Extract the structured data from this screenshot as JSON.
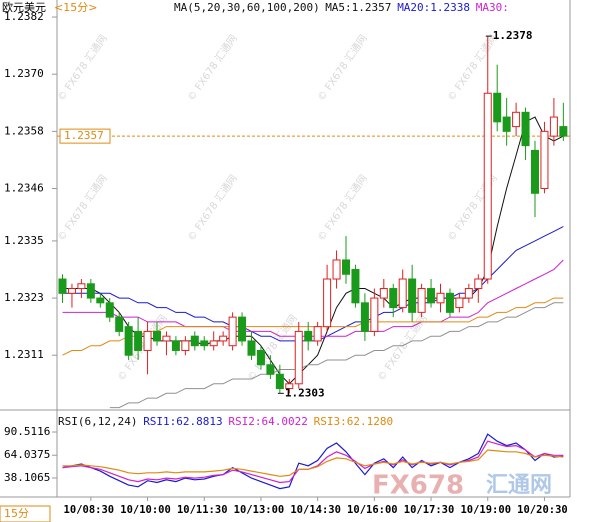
{
  "chart_data": [
    {
      "type": "candlestick",
      "title": "欧元美元",
      "subtitle": "<15分>",
      "ylim": [
        1.22995,
        1.23839
      ],
      "yticks": [
        1.2382,
        {
          "value": 1.237,
          "label": "1.2370"
        },
        1.2358,
        1.2346,
        1.2335,
        1.2323,
        1.2311
      ],
      "up_color": "#e02020",
      "down_color": "#1a9a1a",
      "open": [
        1.2327,
        1.2324,
        1.2325,
        1.2326,
        1.2323,
        1.2322,
        1.2319,
        1.2317,
        1.2316,
        1.2312,
        1.2316,
        1.2314,
        1.2314,
        1.2312,
        1.2315,
        1.2314,
        1.2313,
        1.2314,
        1.2313,
        1.2319,
        1.2314,
        1.2312,
        1.2309,
        1.2307,
        1.2304,
        1.2305,
        1.2316,
        1.2314,
        1.2317,
        1.2327,
        1.2331,
        1.2329,
        1.2322,
        1.2316,
        1.2323,
        1.2325,
        1.2321,
        1.2327,
        1.232,
        1.2325,
        1.2322,
        1.2324,
        1.2321,
        1.2323,
        1.2325,
        1.2327,
        1.2366,
        1.2361,
        1.2359,
        1.2362,
        1.2354,
        1.2346,
        1.2357,
        1.2359
      ],
      "high": [
        1.2328,
        1.2326,
        1.2327,
        1.2327,
        1.2324,
        1.2323,
        1.232,
        1.2318,
        1.2319,
        1.2318,
        1.2318,
        1.2316,
        1.2315,
        1.2315,
        1.2316,
        1.2315,
        1.2316,
        1.2316,
        1.232,
        1.232,
        1.2316,
        1.2313,
        1.2311,
        1.2309,
        1.2306,
        1.2318,
        1.2318,
        1.2318,
        1.233,
        1.2333,
        1.2336,
        1.233,
        1.2324,
        1.2325,
        1.2327,
        1.2326,
        1.2329,
        1.233,
        1.2326,
        1.2327,
        1.2326,
        1.2325,
        1.2324,
        1.2326,
        1.2328,
        1.2378,
        1.2372,
        1.2365,
        1.2364,
        1.2363,
        1.2356,
        1.236,
        1.2365,
        1.2364
      ],
      "low": [
        1.2322,
        1.2321,
        1.2323,
        1.2322,
        1.2321,
        1.2318,
        1.2315,
        1.231,
        1.231,
        1.2307,
        1.2313,
        1.2311,
        1.2311,
        1.2311,
        1.2312,
        1.2312,
        1.2312,
        1.2313,
        1.2312,
        1.2313,
        1.231,
        1.2308,
        1.2306,
        1.2303,
        1.2303,
        1.2304,
        1.2312,
        1.2313,
        1.2316,
        1.2325,
        1.2326,
        1.2321,
        1.2314,
        1.2315,
        1.2321,
        1.2319,
        1.232,
        1.2318,
        1.2319,
        1.2321,
        1.232,
        1.2319,
        1.232,
        1.2322,
        1.2322,
        1.2326,
        1.2358,
        1.2355,
        1.2357,
        1.2352,
        1.234,
        1.2345,
        1.2355,
        1.2356
      ],
      "close": [
        1.2324,
        1.2325,
        1.2326,
        1.2323,
        1.2322,
        1.2319,
        1.2316,
        1.2311,
        1.2312,
        1.2316,
        1.2314,
        1.2315,
        1.2312,
        1.2314,
        1.2313,
        1.2313,
        1.2314,
        1.2315,
        1.2319,
        1.2314,
        1.2311,
        1.2309,
        1.2307,
        1.2304,
        1.2305,
        1.2316,
        1.2314,
        1.2317,
        1.2327,
        1.2331,
        1.2328,
        1.2322,
        1.2316,
        1.2323,
        1.2325,
        1.2321,
        1.2327,
        1.232,
        1.2325,
        1.2322,
        1.2324,
        1.232,
        1.2323,
        1.2325,
        1.2327,
        1.2366,
        1.236,
        1.2358,
        1.2362,
        1.2355,
        1.2345,
        1.2358,
        1.2361,
        1.2357
      ],
      "lines": [
        {
          "color": "#111111",
          "values": [
            1.2325,
            1.2325,
            1.2325,
            1.2325,
            1.2324,
            1.2322,
            1.232,
            1.2317,
            1.2315,
            1.2315,
            1.2314,
            1.2314,
            1.2314,
            1.2314,
            1.2314,
            1.2313,
            1.2314,
            1.2314,
            1.2315,
            1.2315,
            1.2315,
            1.2313,
            1.231,
            1.2307,
            1.2305,
            1.2307,
            1.2309,
            1.2311,
            1.2316,
            1.2321,
            1.2324,
            1.2325,
            1.2325,
            1.2324,
            1.2323,
            1.2321,
            1.2322,
            1.2323,
            1.2323,
            1.2323,
            1.2323,
            1.2323,
            1.2323,
            1.2323,
            1.2325,
            1.2329,
            1.2338,
            1.2346,
            1.2353,
            1.236,
            1.2361,
            1.2357,
            1.2356,
            1.2357
          ]
        },
        {
          "color": "#1a1ad0",
          "values": [
            1.2324,
            1.2324,
            1.2324,
            1.2324,
            1.2324,
            1.2324,
            1.2323,
            1.2323,
            1.2322,
            1.2322,
            1.2321,
            1.2321,
            1.232,
            1.232,
            1.2319,
            1.2319,
            1.2318,
            1.2318,
            1.2317,
            1.2317,
            1.2316,
            1.2315,
            1.2315,
            1.2314,
            1.2314,
            1.2314,
            1.2314,
            1.2314,
            1.2315,
            1.2316,
            1.2317,
            1.2318,
            1.2318,
            1.2319,
            1.232,
            1.232,
            1.2321,
            1.2322,
            1.2322,
            1.2322,
            1.2323,
            1.2323,
            1.2324,
            1.2324,
            1.2325,
            1.2327,
            1.2329,
            1.2331,
            1.2333,
            1.2334,
            1.2335,
            1.2336,
            1.2337,
            1.2338
          ]
        },
        {
          "color": "#d020d0",
          "values": [
            1.232,
            1.232,
            1.232,
            1.232,
            1.232,
            1.232,
            1.2319,
            1.2319,
            1.2319,
            1.2318,
            1.2318,
            1.2318,
            1.2318,
            1.2317,
            1.2317,
            1.2317,
            1.2317,
            1.2317,
            1.2316,
            1.2316,
            1.2316,
            1.2316,
            1.2316,
            1.2315,
            1.2315,
            1.2315,
            1.2315,
            1.2315,
            1.2315,
            1.2315,
            1.2315,
            1.2316,
            1.2316,
            1.2316,
            1.2316,
            1.2317,
            1.2317,
            1.2317,
            1.2318,
            1.2318,
            1.2318,
            1.2319,
            1.2319,
            1.2319,
            1.232,
            1.2322,
            1.2323,
            1.2324,
            1.2325,
            1.2326,
            1.2327,
            1.2328,
            1.2329,
            1.2331
          ]
        },
        {
          "color": "#e08a10",
          "values": [
            1.2311,
            1.2312,
            1.2312,
            1.2313,
            1.2313,
            1.2314,
            1.2314,
            1.2315,
            1.2315,
            1.2316,
            1.2316,
            1.2317,
            1.2317,
            1.2317,
            1.2317,
            1.2317,
            1.2317,
            1.2317,
            1.2317,
            1.2317,
            1.2317,
            1.2317,
            1.2317,
            1.2317,
            1.2317,
            1.2317,
            1.2317,
            1.2317,
            1.2317,
            1.2317,
            1.2317,
            1.2317,
            1.2318,
            1.2318,
            1.2318,
            1.2318,
            1.2318,
            1.2318,
            1.2318,
            1.2318,
            1.2318,
            1.2318,
            1.2318,
            1.2318,
            1.2319,
            1.2319,
            1.232,
            1.232,
            1.2321,
            1.2321,
            1.2322,
            1.2322,
            1.2323,
            1.2323
          ]
        },
        {
          "color": "#909090",
          "values": [
            null,
            null,
            null,
            null,
            null,
            1.23,
            1.23,
            1.2301,
            1.2301,
            1.2302,
            1.2302,
            1.2303,
            1.2303,
            1.2304,
            1.2304,
            1.2304,
            1.2305,
            1.2305,
            1.2306,
            1.2306,
            1.2306,
            1.2307,
            1.2307,
            1.2308,
            1.2308,
            1.2308,
            1.2309,
            1.2309,
            1.231,
            1.231,
            1.231,
            1.2311,
            1.2311,
            1.2312,
            1.2312,
            1.2313,
            1.2313,
            1.2314,
            1.2314,
            1.2315,
            1.2315,
            1.2316,
            1.2316,
            1.2317,
            1.2317,
            1.2318,
            1.2318,
            1.2319,
            1.2319,
            1.232,
            1.2321,
            1.2321,
            1.2322,
            1.2322
          ]
        }
      ],
      "legend": [
        {
          "text": "MA(5,20,30,60,100,200)",
          "color": "#111111"
        },
        {
          "text": "MA5:1.2357",
          "color": "#111111"
        },
        {
          "text": "MA20:1.2338",
          "color": "#1a1ad0"
        },
        {
          "text": "MA30:",
          "color": "#d020d0"
        }
      ],
      "last_price": 1.2357,
      "last_price_color": "#e08a10",
      "annotations": [
        {
          "text": "1.2378",
          "value": 1.2378,
          "of": "high"
        },
        {
          "text": "1.2303",
          "value": 1.2303,
          "of": "low"
        }
      ]
    },
    {
      "type": "line",
      "categories": [
        null,
        null,
        null,
        "10/08:30",
        null,
        null,
        null,
        null,
        null,
        "10/10:00",
        null,
        null,
        null,
        null,
        null,
        "10/11:30",
        null,
        null,
        null,
        null,
        null,
        "10/13:00",
        null,
        null,
        null,
        null,
        null,
        "10/14:30",
        null,
        null,
        null,
        null,
        null,
        "10/16:00",
        null,
        null,
        null,
        null,
        null,
        "10/17:30",
        null,
        null,
        null,
        null,
        null,
        "10/19:00",
        null,
        null,
        null,
        null,
        null,
        "10/20:30",
        null,
        null
      ],
      "ylim": [
        18.7,
        106.5
      ],
      "yticks": [
        90.5116,
        64.0375,
        38.1065
      ],
      "series": [
        {
          "color": "#1a1ad0",
          "values": [
            50,
            52,
            54,
            50,
            46,
            40,
            35,
            30,
            28,
            35,
            33,
            36,
            34,
            38,
            36,
            37,
            40,
            42,
            50,
            44,
            38,
            34,
            30,
            26,
            28,
            55,
            52,
            58,
            72,
            78,
            68,
            55,
            42,
            55,
            60,
            50,
            62,
            50,
            58,
            52,
            56,
            50,
            56,
            60,
            66,
            88,
            80,
            75,
            78,
            70,
            58,
            66,
            62,
            63
          ]
        },
        {
          "color": "#d020d0",
          "values": [
            50,
            51,
            52,
            50,
            48,
            44,
            40,
            36,
            34,
            37,
            36,
            38,
            37,
            39,
            38,
            39,
            41,
            42,
            47,
            45,
            42,
            39,
            36,
            33,
            34,
            48,
            48,
            52,
            62,
            68,
            64,
            57,
            49,
            54,
            57,
            53,
            59,
            53,
            57,
            54,
            56,
            53,
            56,
            58,
            62,
            80,
            77,
            74,
            75,
            70,
            62,
            66,
            64,
            64
          ]
        },
        {
          "color": "#e08a10",
          "values": [
            52,
            52,
            53,
            52,
            51,
            49,
            47,
            44,
            43,
            44,
            44,
            45,
            44,
            45,
            45,
            45,
            46,
            47,
            49,
            48,
            46,
            44,
            42,
            40,
            41,
            48,
            48,
            51,
            57,
            61,
            60,
            56,
            52,
            54,
            56,
            54,
            57,
            54,
            56,
            55,
            56,
            54,
            56,
            57,
            59,
            70,
            69,
            68,
            68,
            66,
            62,
            64,
            63,
            62
          ]
        }
      ],
      "legend": [
        {
          "text": "RSI(6,12,24)",
          "color": "#111111"
        },
        {
          "text": "RSI1:62.8813",
          "color": "#1a1ad0"
        },
        {
          "text": "RSI2:64.0022",
          "color": "#d020d0"
        },
        {
          "text": "RSI3:62.1280",
          "color": "#e08a10"
        }
      ]
    }
  ],
  "period_tab": "15分",
  "watermark": "© FX678 汇通网",
  "logo": {
    "brand": "FX678",
    "name": "汇通网"
  }
}
